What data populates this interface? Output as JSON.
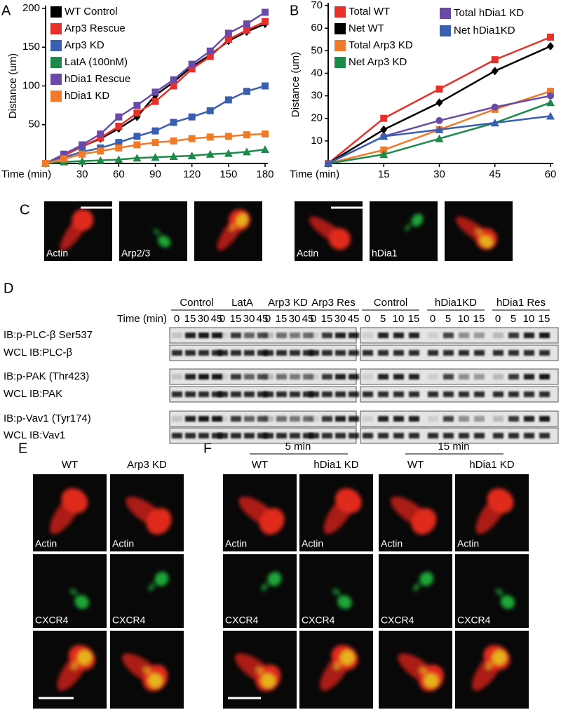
{
  "chart_data": [
    {
      "type": "line",
      "panel": "A",
      "y_label": "Distance (um)",
      "x_label": "Time (min)",
      "x": [
        0,
        15,
        30,
        45,
        60,
        75,
        90,
        105,
        120,
        135,
        150,
        165,
        180
      ],
      "xlim": [
        0,
        180
      ],
      "xticks": [
        30,
        60,
        90,
        120,
        150,
        180
      ],
      "ylim": [
        0,
        200
      ],
      "yticks": [
        50,
        100,
        150,
        200
      ],
      "legend": "upper left",
      "series": [
        {
          "name": "WT Control",
          "color": "#000000",
          "marker": "diamond",
          "values": [
            0,
            10,
            22,
            32,
            45,
            60,
            88,
            105,
            125,
            140,
            158,
            170,
            180
          ]
        },
        {
          "name": "Arp3 Rescue",
          "color": "#e8302a",
          "marker": "square",
          "values": [
            0,
            10,
            22,
            33,
            48,
            65,
            80,
            100,
            122,
            138,
            160,
            172,
            183
          ]
        },
        {
          "name": "Arp3 KD",
          "color": "#3a5fb0",
          "marker": "square",
          "values": [
            0,
            8,
            15,
            20,
            27,
            35,
            42,
            53,
            60,
            68,
            82,
            93,
            100
          ]
        },
        {
          "name": "LatA (100nM)",
          "color": "#1e8a4a",
          "marker": "triangle",
          "values": [
            0,
            2,
            3,
            4,
            5,
            7,
            8,
            9,
            10,
            12,
            13,
            15,
            18
          ]
        },
        {
          "name": "hDia1 Rescue",
          "color": "#6a4aa8",
          "marker": "square",
          "values": [
            0,
            12,
            24,
            38,
            60,
            75,
            92,
            108,
            128,
            145,
            168,
            180,
            195
          ]
        },
        {
          "name": "hDia1 KD",
          "color": "#f07a2a",
          "marker": "square",
          "values": [
            0,
            6,
            12,
            16,
            20,
            24,
            27,
            29,
            32,
            34,
            35,
            37,
            38
          ]
        }
      ]
    },
    {
      "type": "line",
      "panel": "B",
      "y_label": "Distance (um)",
      "x_label": "Time (min)",
      "x": [
        0,
        15,
        30,
        45,
        60
      ],
      "xlim": [
        0,
        60
      ],
      "xticks": [
        15,
        30,
        45,
        60
      ],
      "ylim": [
        0,
        70
      ],
      "yticks": [
        10,
        20,
        30,
        40,
        50,
        60,
        70
      ],
      "legend": "upper left",
      "series": [
        {
          "name": "Total WT",
          "color": "#e8302a",
          "marker": "square",
          "values": [
            0,
            20,
            33,
            46,
            56
          ]
        },
        {
          "name": "Net WT",
          "color": "#000000",
          "marker": "diamond",
          "values": [
            0,
            15,
            27,
            41,
            52
          ]
        },
        {
          "name": "Total Arp3 KD",
          "color": "#f07a2a",
          "marker": "square",
          "values": [
            0,
            6,
            15,
            24,
            32
          ]
        },
        {
          "name": "Net Arp3 KD",
          "color": "#1e8a4a",
          "marker": "triangle",
          "values": [
            0,
            4,
            11,
            18,
            27
          ]
        },
        {
          "name": "Total hDia1 KD",
          "color": "#6a4aa8",
          "marker": "circle",
          "values": [
            0,
            12,
            19,
            25,
            30
          ]
        },
        {
          "name": "Net hDia1KD",
          "color": "#3a5fb0",
          "marker": "triangle",
          "values": [
            0,
            12,
            15,
            18,
            21
          ]
        }
      ]
    }
  ],
  "panel_labels": [
    "A",
    "B",
    "C",
    "D",
    "E",
    "F"
  ],
  "panel_c": {
    "left": [
      "Actin",
      "Arp2/3"
    ],
    "right": [
      "Actin",
      "hDia1"
    ]
  },
  "panel_d": {
    "time_label": "Time (min)",
    "left_groups": [
      {
        "name": "Control",
        "times": [
          0,
          15,
          30,
          45
        ]
      },
      {
        "name": "LatA",
        "times": [
          0,
          15,
          30,
          45
        ]
      },
      {
        "name": "Arp3 KD",
        "times": [
          0,
          15,
          30,
          45
        ]
      },
      {
        "name": "Arp3 Res",
        "times": [
          0,
          15,
          30,
          45
        ]
      }
    ],
    "right_groups": [
      {
        "name": "Control",
        "times": [
          0,
          5,
          10,
          15
        ]
      },
      {
        "name": "hDia1KD",
        "times": [
          0,
          5,
          10,
          15
        ]
      },
      {
        "name": "hDia1 Res",
        "times": [
          0,
          5,
          10,
          15
        ]
      }
    ],
    "rows": [
      "IB:p-PLC-β Ser537",
      "WCL IB:PLC-β",
      "IB:p-PAK (Thr423)",
      "WCL IB:PAK",
      "IB:p-Vav1 (Tyr174)",
      "WCL IB:Vav1"
    ]
  },
  "panel_e": {
    "columns": [
      "WT",
      "Arp3 KD"
    ],
    "rows": [
      "Actin",
      "CXCR4"
    ]
  },
  "panel_f": {
    "groups": [
      {
        "time": "5 min",
        "columns": [
          "WT",
          "hDia1 KD"
        ]
      },
      {
        "time": "15 min",
        "columns": [
          "WT",
          "hDia1 KD"
        ]
      }
    ],
    "rows": [
      "Actin",
      "CXCR4"
    ]
  }
}
